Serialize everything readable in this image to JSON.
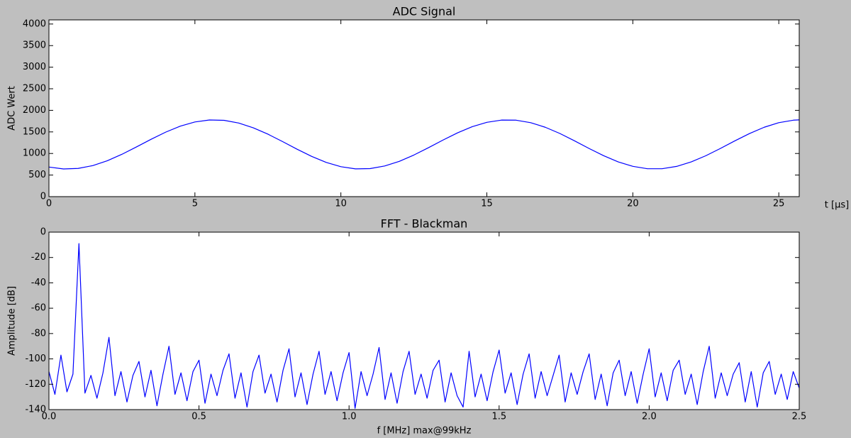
{
  "chart_data": [
    {
      "type": "line",
      "title": "ADC Signal",
      "x_label": "t [μs]",
      "y_label": "ADC Wert",
      "x": [
        0,
        0.5,
        1,
        1.5,
        2,
        2.5,
        3,
        3.5,
        4,
        4.5,
        5,
        5.5,
        6,
        6.5,
        7,
        7.5,
        8,
        8.5,
        9,
        9.5,
        10,
        10.5,
        11,
        11.5,
        12,
        12.5,
        13,
        13.5,
        14,
        14.5,
        15,
        15.5,
        16,
        16.5,
        17,
        17.5,
        18,
        18.5,
        19,
        19.5,
        20,
        20.5,
        21,
        21.5,
        22,
        22.5,
        23,
        23.5,
        24,
        24.5,
        25,
        25.5,
        25.7
      ],
      "series": [
        {
          "name": "ADC",
          "color": "#0000ff",
          "values": [
            686,
            642,
            654,
            719,
            831,
            981,
            1152,
            1329,
            1495,
            1633,
            1730,
            1777,
            1768,
            1706,
            1595,
            1448,
            1277,
            1099,
            933,
            793,
            694,
            644,
            650,
            710,
            818,
            964,
            1134,
            1312,
            1479,
            1621,
            1722,
            1774,
            1772,
            1714,
            1608,
            1464,
            1294,
            1117,
            949,
            805,
            702,
            647,
            647,
            701,
            805,
            948,
            1117,
            1294,
            1463,
            1608,
            1714,
            1772,
            1779
          ]
        }
      ],
      "xlim": [
        0,
        25.7
      ],
      "xticks": [
        0,
        5,
        10,
        15,
        20,
        25
      ],
      "ylim": [
        0,
        4096
      ],
      "yticks": [
        0,
        500,
        1000,
        1500,
        2000,
        2500,
        3000,
        3500,
        4000
      ],
      "grid": false
    },
    {
      "type": "line",
      "title": "FFT - Blackman",
      "x_label": "f [MHz] max@99kHz",
      "y_label": "Amplitude [dB]",
      "x": [
        0,
        0.02,
        0.04,
        0.06,
        0.08,
        0.1,
        0.12,
        0.14,
        0.16,
        0.18,
        0.2,
        0.22,
        0.24,
        0.26,
        0.28,
        0.3,
        0.32,
        0.34,
        0.36,
        0.38,
        0.4,
        0.42,
        0.44,
        0.46,
        0.48,
        0.5,
        0.52,
        0.54,
        0.56,
        0.58,
        0.6,
        0.62,
        0.64,
        0.66,
        0.68,
        0.7,
        0.72,
        0.74,
        0.76,
        0.78,
        0.8,
        0.82,
        0.84,
        0.86,
        0.88,
        0.9,
        0.92,
        0.94,
        0.96,
        0.98,
        1,
        1.02,
        1.04,
        1.06,
        1.08,
        1.1,
        1.12,
        1.14,
        1.16,
        1.18,
        1.2,
        1.22,
        1.24,
        1.26,
        1.28,
        1.3,
        1.32,
        1.34,
        1.36,
        1.38,
        1.4,
        1.42,
        1.44,
        1.46,
        1.48,
        1.5,
        1.52,
        1.54,
        1.56,
        1.58,
        1.6,
        1.62,
        1.64,
        1.66,
        1.68,
        1.7,
        1.72,
        1.74,
        1.76,
        1.78,
        1.8,
        1.82,
        1.84,
        1.86,
        1.88,
        1.9,
        1.92,
        1.94,
        1.96,
        1.98,
        2,
        2.02,
        2.04,
        2.06,
        2.08,
        2.1,
        2.12,
        2.14,
        2.16,
        2.18,
        2.2,
        2.22,
        2.24,
        2.26,
        2.28,
        2.3,
        2.32,
        2.34,
        2.36,
        2.38,
        2.4,
        2.42,
        2.44,
        2.46,
        2.48,
        2.5
      ],
      "series": [
        {
          "name": "FFT",
          "color": "#0000ff",
          "values": [
            -110,
            -128,
            -97,
            -126,
            -112,
            -9,
            -127,
            -113,
            -131,
            -111,
            -83,
            -129,
            -110,
            -134,
            -113,
            -102,
            -130,
            -109,
            -137,
            -112,
            -90,
            -128,
            -111,
            -133,
            -110,
            -101,
            -135,
            -112,
            -129,
            -109,
            -96,
            -131,
            -111,
            -138,
            -110,
            -97,
            -127,
            -112,
            -134,
            -109,
            -92,
            -130,
            -111,
            -136,
            -112,
            -94,
            -128,
            -110,
            -133,
            -111,
            -95,
            -139,
            -110,
            -129,
            -112,
            -91,
            -132,
            -111,
            -135,
            -110,
            -94,
            -128,
            -112,
            -131,
            -109,
            -101,
            -134,
            -111,
            -129,
            -138,
            -94,
            -130,
            -112,
            -133,
            -110,
            -93,
            -127,
            -111,
            -136,
            -112,
            -96,
            -131,
            -110,
            -129,
            -113,
            -97,
            -134,
            -111,
            -128,
            -110,
            -96,
            -132,
            -112,
            -137,
            -111,
            -101,
            -129,
            -110,
            -135,
            -112,
            -92,
            -130,
            -111,
            -133,
            -109,
            -101,
            -128,
            -112,
            -136,
            -110,
            -90,
            -131,
            -111,
            -129,
            -112,
            -103,
            -134,
            -110,
            -138,
            -111,
            -102,
            -128,
            -112,
            -132,
            -110,
            -123
          ]
        }
      ],
      "xlim": [
        0,
        2.5
      ],
      "xticks": [
        {
          "value": 0,
          "label": "0.0"
        },
        0.5,
        {
          "value": 1,
          "label": "1.0"
        },
        1.5,
        {
          "value": 2,
          "label": "2.0"
        },
        2.5
      ],
      "ylim": [
        -140,
        0
      ],
      "yticks": [
        -140,
        -120,
        -100,
        -80,
        -60,
        -40,
        -20,
        0
      ],
      "grid": false
    }
  ]
}
